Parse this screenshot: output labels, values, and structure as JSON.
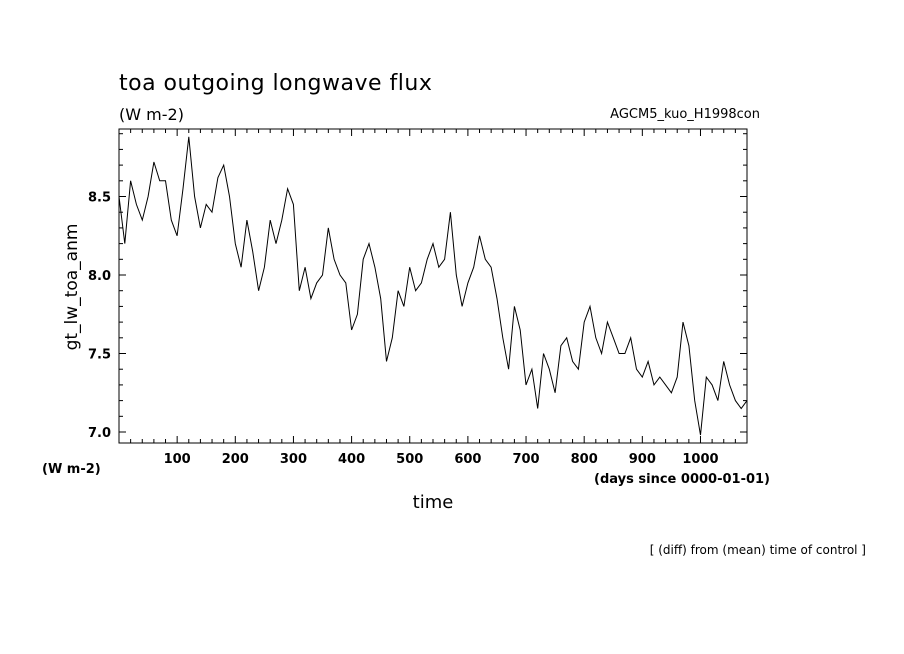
{
  "header": {
    "title": "toa outgoing longwave flux",
    "units": "(W m-2)",
    "run_name": "AGCM5_kuo_H1998con"
  },
  "footer": {
    "note": "[ (diff) from (mean) time of control ]"
  },
  "chart_data": {
    "type": "line",
    "title": "toa outgoing longwave flux",
    "subtitle": "(W m-2)",
    "xlabel": "time",
    "xunit": "(days since 0000-01-01)",
    "ylabel": "gt_lw_toa_anm",
    "yunit": "(W m-2)",
    "xlim": [
      0,
      1080
    ],
    "ylim": [
      6.93,
      8.93
    ],
    "xticks": [
      100,
      200,
      300,
      400,
      500,
      600,
      700,
      800,
      900,
      1000
    ],
    "yticks": [
      "7.0",
      "7.5",
      "8.0",
      "8.5"
    ],
    "grid": false,
    "line_color": "#000000",
    "series": [
      {
        "x": [
          0,
          10,
          20,
          30,
          40,
          50,
          60,
          70,
          80,
          90,
          100,
          110,
          120,
          130,
          140,
          150,
          160,
          170,
          180,
          190,
          200,
          210,
          220,
          230,
          240,
          250,
          260,
          270,
          280,
          290,
          300,
          310,
          320,
          330,
          340,
          350,
          360,
          370,
          380,
          390,
          400,
          410,
          420,
          430,
          440,
          450,
          460,
          470,
          480,
          490,
          500,
          510,
          520,
          530,
          540,
          550,
          560,
          570,
          580,
          590,
          600,
          610,
          620,
          630,
          640,
          650,
          660,
          670,
          680,
          690,
          700,
          710,
          720,
          730,
          740,
          750,
          760,
          770,
          780,
          790,
          800,
          810,
          820,
          830,
          840,
          850,
          860,
          870,
          880,
          890,
          900,
          910,
          920,
          930,
          940,
          950,
          960,
          970,
          980,
          990,
          1000,
          1010,
          1020,
          1030,
          1040,
          1050,
          1060,
          1070,
          1080
        ],
        "values": [
          8.5,
          8.2,
          8.6,
          8.45,
          8.35,
          8.5,
          8.72,
          8.6,
          8.6,
          8.35,
          8.25,
          8.55,
          8.88,
          8.5,
          8.3,
          8.45,
          8.4,
          8.62,
          8.7,
          8.5,
          8.2,
          8.05,
          8.35,
          8.15,
          7.9,
          8.05,
          8.35,
          8.2,
          8.35,
          8.55,
          8.45,
          7.9,
          8.05,
          7.85,
          7.95,
          8.0,
          8.3,
          8.1,
          8.0,
          7.95,
          7.65,
          7.75,
          8.1,
          8.2,
          8.05,
          7.85,
          7.45,
          7.6,
          7.9,
          7.8,
          8.05,
          7.9,
          7.95,
          8.1,
          8.2,
          8.05,
          8.1,
          8.4,
          8.0,
          7.8,
          7.95,
          8.05,
          8.25,
          8.1,
          8.05,
          7.85,
          7.6,
          7.4,
          7.8,
          7.65,
          7.3,
          7.4,
          7.15,
          7.5,
          7.4,
          7.25,
          7.55,
          7.6,
          7.45,
          7.4,
          7.7,
          7.8,
          7.6,
          7.5,
          7.7,
          7.6,
          7.5,
          7.5,
          7.6,
          7.4,
          7.35,
          7.45,
          7.3,
          7.35,
          7.3,
          7.25,
          7.35,
          7.7,
          7.55,
          7.2,
          6.98,
          7.35,
          7.3,
          7.2,
          7.45,
          7.3,
          7.2,
          7.15,
          7.2
        ]
      }
    ]
  }
}
